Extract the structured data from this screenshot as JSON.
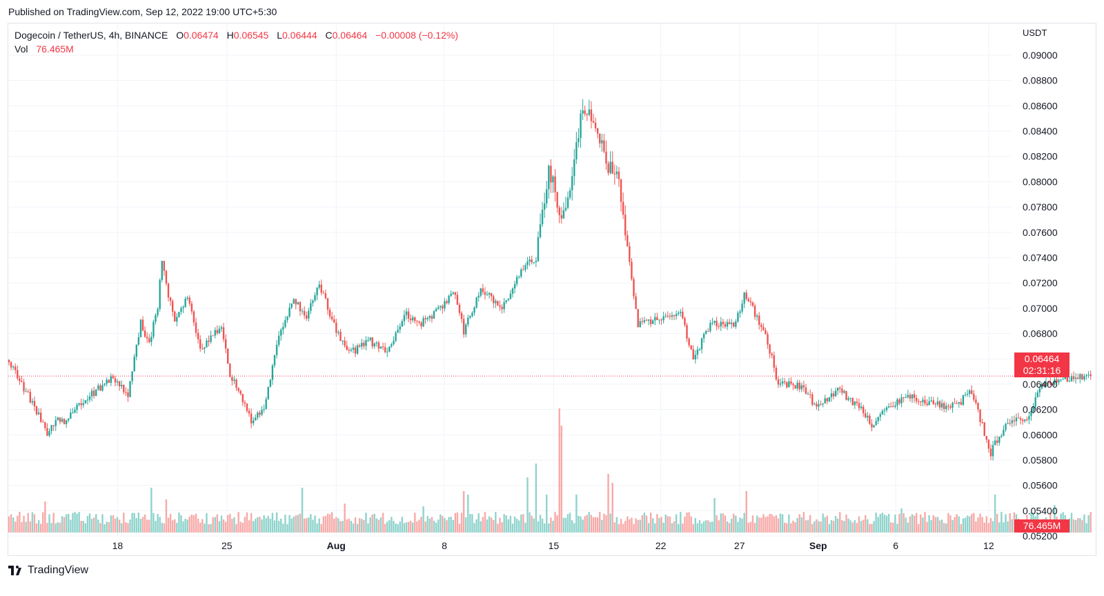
{
  "header": {
    "published": "Published on TradingView.com, Sep 12, 2022 19:00 UTC+5:30"
  },
  "legend": {
    "symbol": "Dogecoin / TetherUS, 4h, BINANCE",
    "o_label": "O",
    "o_value": "0.06474",
    "h_label": "H",
    "h_value": "0.06545",
    "l_label": "L",
    "l_value": "0.06444",
    "c_label": "C",
    "c_value": "0.06464",
    "change": "−0.00008 (−0.12%)",
    "vol_label": "Vol",
    "vol_value": "76.465M"
  },
  "price_axis": {
    "currency": "USDT"
  },
  "last_price": {
    "value": "0.06464",
    "countdown": "02:31:16"
  },
  "footer": {
    "brand": "TradingView"
  },
  "colors": {
    "up": "#26a69a",
    "down": "#ef5350",
    "vol_up": "#8fd3cc",
    "vol_down": "#f7a9a7",
    "last": "#f23645"
  },
  "chart_data": {
    "type": "candlestick",
    "symbol": "Dogecoin / TetherUS",
    "interval": "4h",
    "y_axis": {
      "ticks": [
        "0.05200",
        "0.05400",
        "0.05600",
        "0.05800",
        "0.06000",
        "0.06200",
        "0.06400",
        "0.06600",
        "0.06800",
        "0.07000",
        "0.07200",
        "0.07400",
        "0.07600",
        "0.07800",
        "0.08000",
        "0.08200",
        "0.08400",
        "0.08600",
        "0.08800",
        "0.09000"
      ],
      "range": [
        0.0505,
        0.0907
      ]
    },
    "x_axis": {
      "ticks": [
        {
          "label": "18",
          "bold": false,
          "at": 0.1
        },
        {
          "label": "25",
          "bold": false,
          "at": 0.2
        },
        {
          "label": "Aug",
          "bold": true,
          "at": 0.3
        },
        {
          "label": "8",
          "bold": false,
          "at": 0.399
        },
        {
          "label": "15",
          "bold": false,
          "at": 0.499
        },
        {
          "label": "22",
          "bold": false,
          "at": 0.597
        },
        {
          "label": "27",
          "bold": false,
          "at": 0.669
        },
        {
          "label": "Sep",
          "bold": true,
          "at": 0.741
        },
        {
          "label": "6",
          "bold": false,
          "at": 0.812
        },
        {
          "label": "12",
          "bold": false,
          "at": 0.897
        }
      ]
    },
    "keypoints": [
      [
        0,
        0.0658
      ],
      [
        14,
        0.0616
      ],
      [
        18,
        0.0602
      ],
      [
        22,
        0.0612
      ],
      [
        26,
        0.061
      ],
      [
        36,
        0.0628
      ],
      [
        48,
        0.0644
      ],
      [
        56,
        0.0632
      ],
      [
        62,
        0.0688
      ],
      [
        66,
        0.0672
      ],
      [
        70,
        0.0702
      ],
      [
        72,
        0.074
      ],
      [
        75,
        0.071
      ],
      [
        78,
        0.069
      ],
      [
        84,
        0.071
      ],
      [
        90,
        0.0668
      ],
      [
        100,
        0.0686
      ],
      [
        104,
        0.0648
      ],
      [
        110,
        0.0628
      ],
      [
        114,
        0.061
      ],
      [
        120,
        0.062
      ],
      [
        126,
        0.0672
      ],
      [
        134,
        0.0708
      ],
      [
        140,
        0.0692
      ],
      [
        146,
        0.072
      ],
      [
        152,
        0.069
      ],
      [
        160,
        0.0664
      ],
      [
        170,
        0.0674
      ],
      [
        178,
        0.0664
      ],
      [
        186,
        0.0696
      ],
      [
        194,
        0.0688
      ],
      [
        200,
        0.0696
      ],
      [
        210,
        0.0712
      ],
      [
        214,
        0.0682
      ],
      [
        222,
        0.0716
      ],
      [
        232,
        0.07
      ],
      [
        242,
        0.0732
      ],
      [
        248,
        0.074
      ],
      [
        254,
        0.0812
      ],
      [
        260,
        0.0772
      ],
      [
        264,
        0.0798
      ],
      [
        270,
        0.086
      ],
      [
        276,
        0.0846
      ],
      [
        282,
        0.0812
      ],
      [
        286,
        0.081
      ],
      [
        292,
        0.0734
      ],
      [
        296,
        0.0686
      ],
      [
        308,
        0.0694
      ],
      [
        316,
        0.0698
      ],
      [
        322,
        0.066
      ],
      [
        330,
        0.0688
      ],
      [
        342,
        0.0688
      ],
      [
        346,
        0.0712
      ],
      [
        356,
        0.068
      ],
      [
        362,
        0.064
      ],
      [
        374,
        0.0638
      ],
      [
        380,
        0.062
      ],
      [
        390,
        0.0636
      ],
      [
        400,
        0.0622
      ],
      [
        406,
        0.0608
      ],
      [
        414,
        0.0624
      ],
      [
        426,
        0.063
      ],
      [
        436,
        0.0624
      ],
      [
        446,
        0.0622
      ],
      [
        452,
        0.0636
      ],
      [
        456,
        0.0618
      ],
      [
        462,
        0.0586
      ],
      [
        470,
        0.0612
      ],
      [
        478,
        0.061
      ],
      [
        486,
        0.0638
      ],
      [
        496,
        0.0644
      ],
      [
        506,
        0.0646
      ]
    ],
    "volume_spikes": [
      [
        17,
        0.45
      ],
      [
        67,
        0.65
      ],
      [
        74,
        0.48
      ],
      [
        138,
        0.65
      ],
      [
        158,
        0.42
      ],
      [
        195,
        0.38
      ],
      [
        214,
        0.6
      ],
      [
        216,
        0.55
      ],
      [
        244,
        0.8
      ],
      [
        248,
        1.0
      ],
      [
        253,
        0.55
      ],
      [
        259,
        1.8
      ],
      [
        260,
        1.55
      ],
      [
        267,
        0.55
      ],
      [
        278,
        0.3
      ],
      [
        282,
        0.85
      ],
      [
        284,
        0.72
      ],
      [
        332,
        0.5
      ],
      [
        347,
        0.6
      ],
      [
        420,
        0.35
      ],
      [
        464,
        0.55
      ],
      [
        492,
        0.4
      ]
    ]
  }
}
